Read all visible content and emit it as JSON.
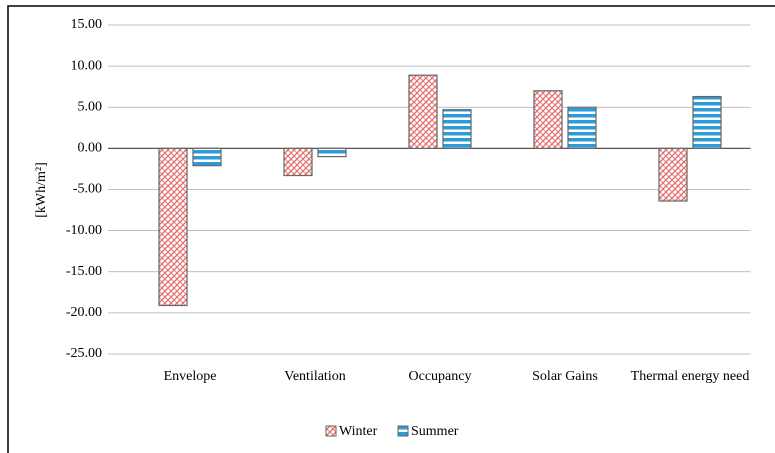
{
  "chart_data": {
    "type": "bar",
    "y_label": "[kWh/m²]",
    "categories": [
      "Envelope",
      "Ventilation",
      "Occupancy",
      "Solar Gains",
      "Thermal energy need"
    ],
    "series": [
      {
        "name": "Winter",
        "color": "#e06666",
        "values": [
          -19.1,
          -3.3,
          8.9,
          7.0,
          -6.4
        ]
      },
      {
        "name": "Summer",
        "color": "#2e9bd6",
        "values": [
          -2.1,
          -1.0,
          4.7,
          5.0,
          6.3
        ]
      }
    ],
    "ylim": [
      -25,
      15
    ],
    "yticks": [
      {
        "value": -25,
        "label": "-25.00"
      },
      {
        "value": -20,
        "label": "-20.00"
      },
      {
        "value": -15,
        "label": "-15.00"
      },
      {
        "value": -10,
        "label": "-10.00"
      },
      {
        "value": -5,
        "label": "-5.00"
      },
      {
        "value": 0,
        "label": "0.00"
      },
      {
        "value": 5,
        "label": "5.00"
      },
      {
        "value": 10,
        "label": "10.00"
      },
      {
        "value": 15,
        "label": "15.00"
      }
    ],
    "grid": true,
    "legend": "bottom"
  }
}
